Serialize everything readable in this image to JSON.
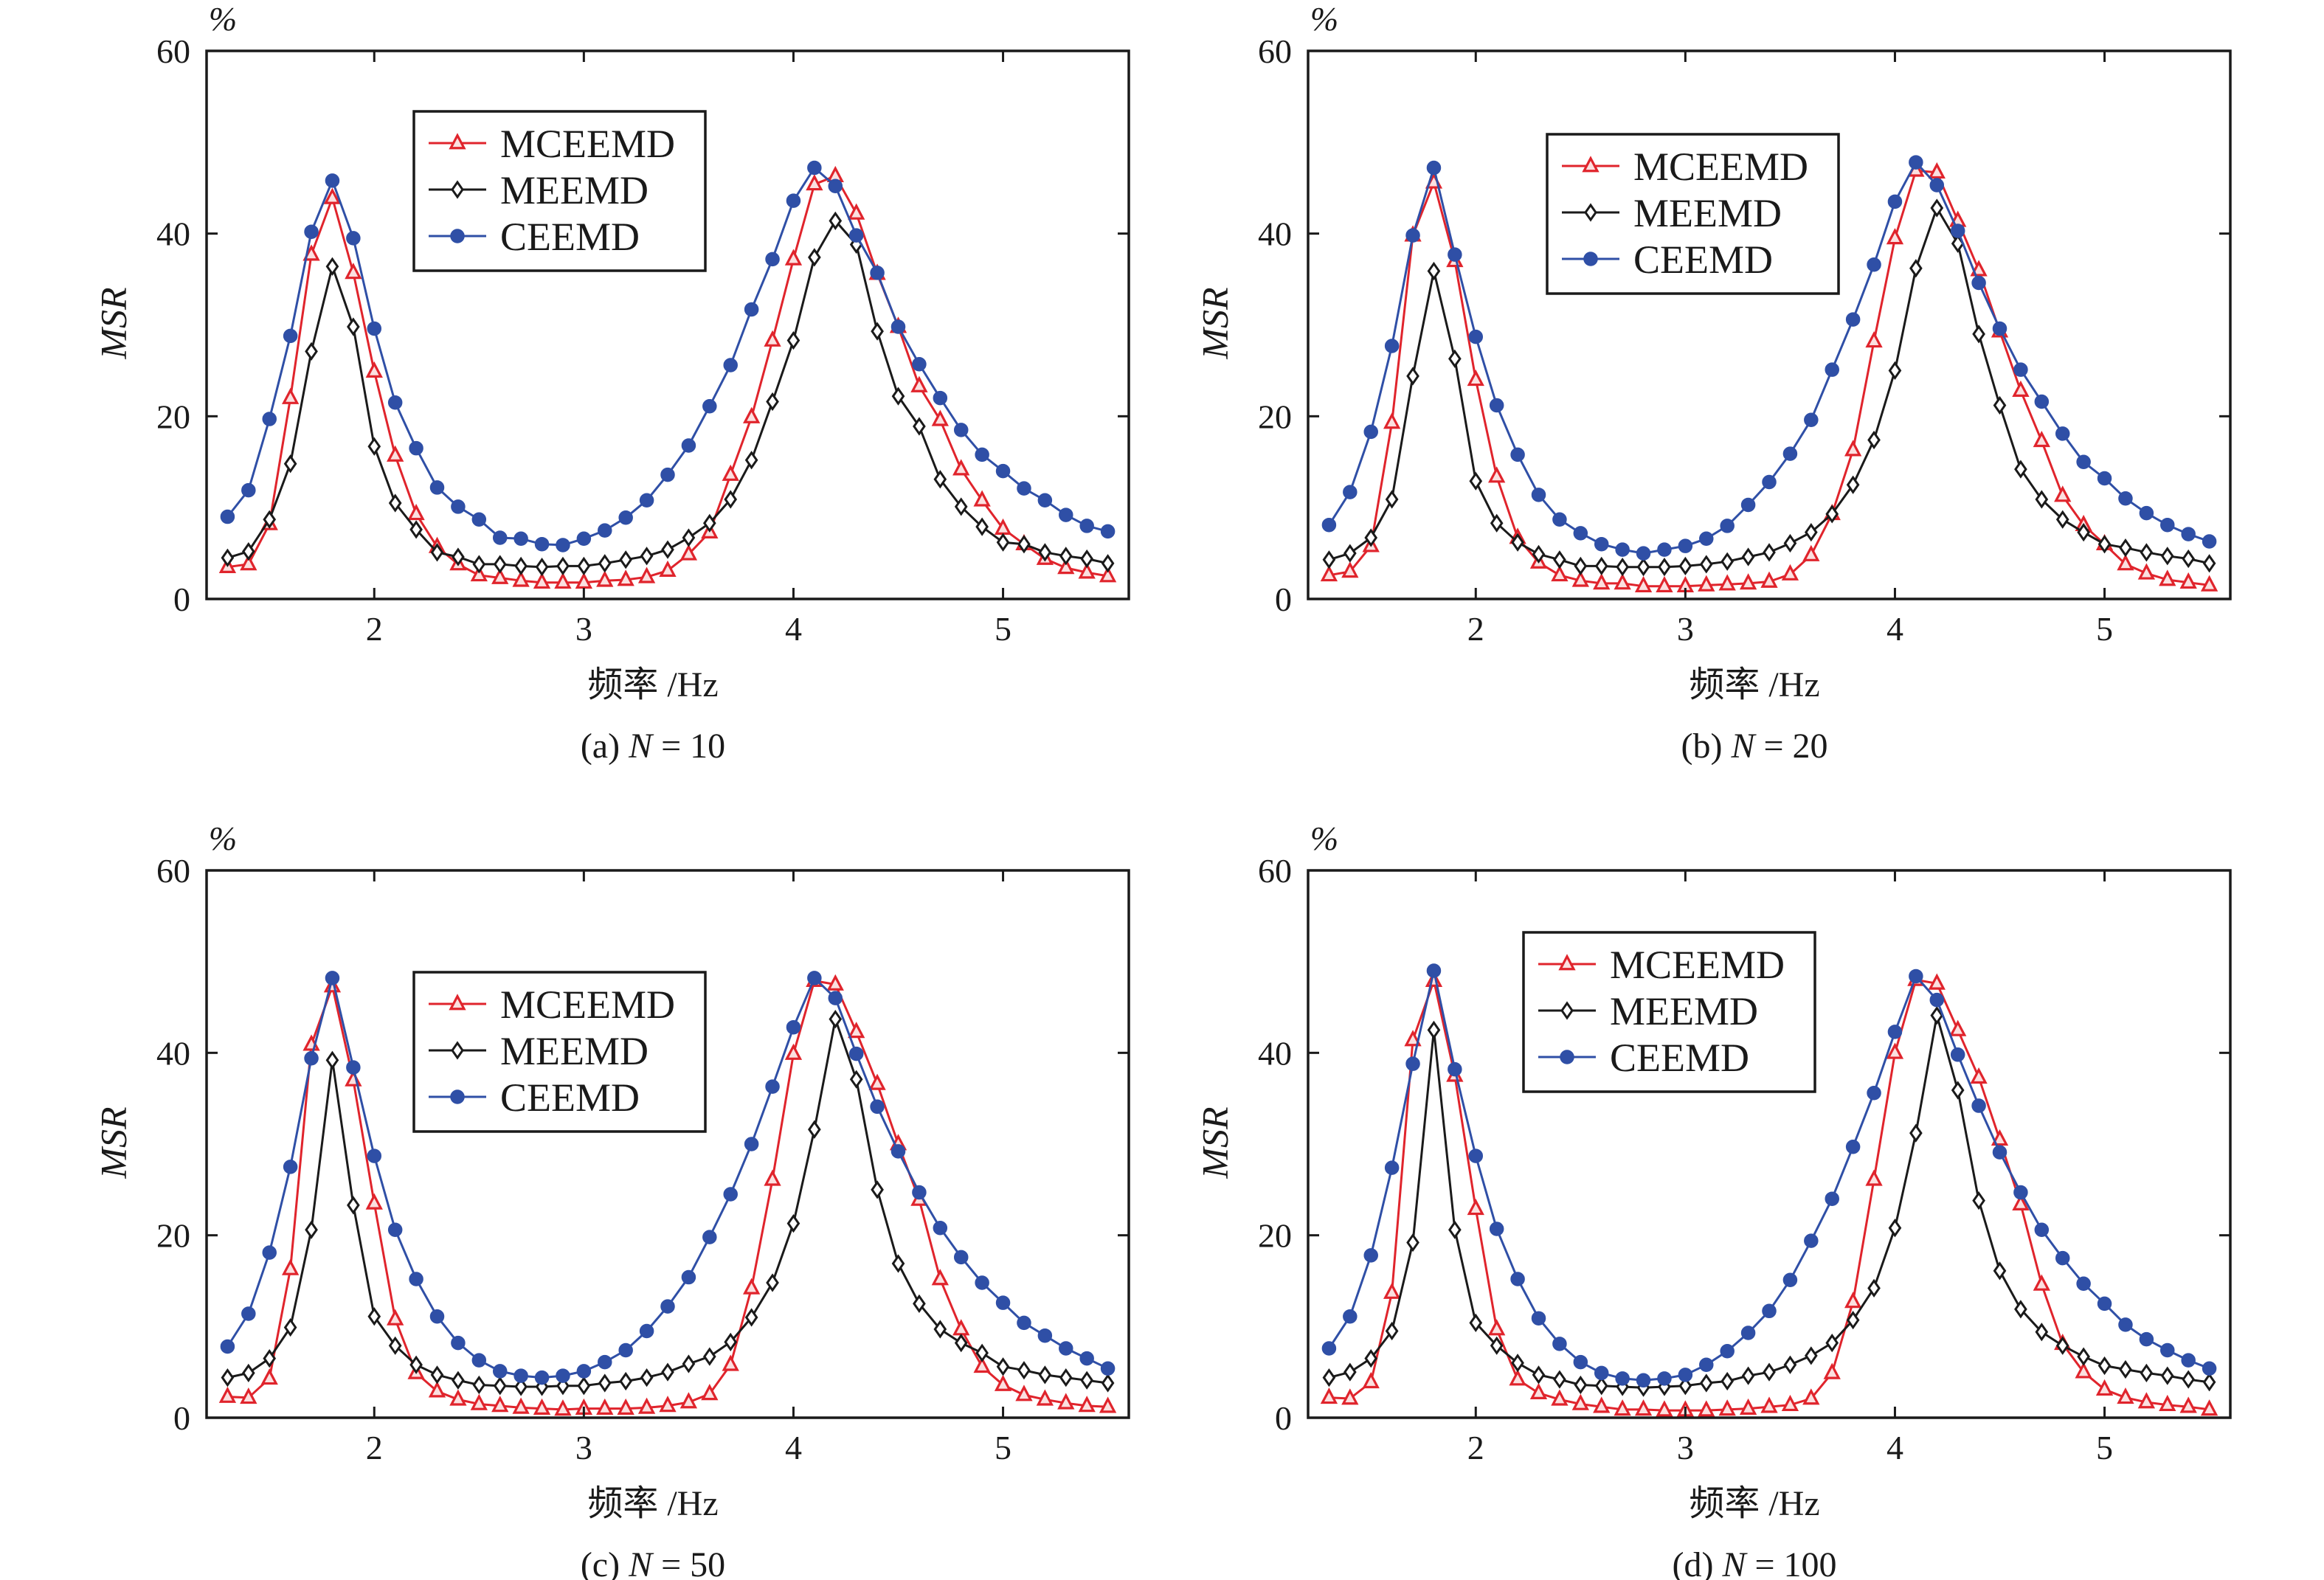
{
  "figure": {
    "colors": {
      "MCEEMD": "#e0242c",
      "MEEMD": "#1a1a1a",
      "CEEMD": "#2f4fa6",
      "axis": "#1a1a1a"
    }
  },
  "chart_data": [
    {
      "type": "line",
      "panel": "a",
      "title": "",
      "caption": "(a) N = 10",
      "caption_prefix": "(a) ",
      "caption_var": "N",
      "caption_rest": " = 10",
      "xlabel": "频率 /Hz",
      "ylabel": "MSR",
      "yunit": "%",
      "xlim": [
        1.2,
        5.6
      ],
      "ylim": [
        0,
        60
      ],
      "xticks": [
        2,
        3,
        4,
        5
      ],
      "yticks": [
        0,
        20,
        40,
        60
      ],
      "grid": false,
      "legend_position": "upper-center-left",
      "x": [
        1.3,
        1.4,
        1.5,
        1.6,
        1.7,
        1.8,
        1.9,
        2.0,
        2.1,
        2.2,
        2.3,
        2.4,
        2.5,
        2.6,
        2.7,
        2.8,
        2.9,
        3.0,
        3.1,
        3.2,
        3.3,
        3.4,
        3.5,
        3.6,
        3.7,
        3.8,
        3.9,
        4.0,
        4.1,
        4.2,
        4.3,
        4.4,
        4.5,
        4.6,
        4.7,
        4.8,
        4.9,
        5.0,
        5.1,
        5.2,
        5.3,
        5.4,
        5.5
      ],
      "series": [
        {
          "name": "MCEEMD",
          "marker": "triangle",
          "values": [
            3.5,
            3.8,
            8.2,
            22.0,
            37.7,
            43.9,
            35.7,
            24.9,
            15.7,
            9.3,
            5.7,
            3.8,
            2.6,
            2.3,
            2.0,
            1.8,
            1.8,
            1.8,
            2.0,
            2.1,
            2.4,
            3.1,
            4.9,
            7.3,
            13.6,
            19.9,
            28.3,
            37.2,
            45.4,
            46.3,
            42.2,
            35.6,
            29.8,
            23.3,
            19.6,
            14.2,
            10.8,
            7.7,
            6.0,
            4.4,
            3.4,
            2.9,
            2.5
          ]
        },
        {
          "name": "MEEMD",
          "marker": "diamond",
          "values": [
            4.5,
            5.2,
            8.7,
            14.8,
            27.1,
            36.4,
            29.8,
            16.7,
            10.5,
            7.6,
            5.1,
            4.6,
            3.8,
            3.8,
            3.6,
            3.5,
            3.6,
            3.6,
            3.9,
            4.3,
            4.7,
            5.4,
            6.7,
            8.3,
            10.9,
            15.2,
            21.6,
            28.3,
            37.4,
            41.4,
            38.8,
            29.3,
            22.2,
            18.9,
            13.1,
            10.1,
            7.9,
            6.2,
            6.0,
            5.1,
            4.7,
            4.4,
            3.9
          ]
        },
        {
          "name": "CEEMD",
          "marker": "circle",
          "values": [
            9.0,
            11.9,
            19.7,
            28.8,
            40.2,
            45.8,
            39.5,
            29.6,
            21.5,
            16.5,
            12.2,
            10.1,
            8.7,
            6.7,
            6.6,
            6.0,
            5.9,
            6.6,
            7.5,
            8.9,
            10.8,
            13.6,
            16.8,
            21.1,
            25.6,
            31.7,
            37.2,
            43.6,
            47.2,
            45.2,
            39.8,
            35.7,
            29.8,
            25.7,
            22.0,
            18.5,
            15.8,
            14.0,
            12.1,
            10.8,
            9.2,
            8.0,
            7.4
          ]
        }
      ]
    },
    {
      "type": "line",
      "panel": "b",
      "title": "",
      "caption": "(b) N = 20",
      "caption_prefix": "(b) ",
      "caption_var": "N",
      "caption_rest": " = 20",
      "xlabel": "频率 /Hz",
      "ylabel": "MSR",
      "yunit": "%",
      "xlim": [
        1.2,
        5.6
      ],
      "ylim": [
        0,
        60
      ],
      "xticks": [
        2,
        3,
        4,
        5
      ],
      "yticks": [
        0,
        20,
        40,
        60
      ],
      "grid": false,
      "legend_position": "upper-center",
      "x": [
        1.3,
        1.4,
        1.5,
        1.6,
        1.7,
        1.8,
        1.9,
        2.0,
        2.1,
        2.2,
        2.3,
        2.4,
        2.5,
        2.6,
        2.7,
        2.8,
        2.9,
        3.0,
        3.1,
        3.2,
        3.3,
        3.4,
        3.5,
        3.6,
        3.7,
        3.8,
        3.9,
        4.0,
        4.1,
        4.2,
        4.3,
        4.4,
        4.5,
        4.6,
        4.7,
        4.8,
        4.9,
        5.0,
        5.1,
        5.2,
        5.3,
        5.4,
        5.5
      ],
      "series": [
        {
          "name": "MCEEMD",
          "marker": "triangle",
          "values": [
            2.6,
            3.0,
            5.8,
            19.3,
            39.8,
            45.6,
            37.0,
            24.0,
            13.4,
            6.7,
            4.0,
            2.6,
            2.0,
            1.7,
            1.7,
            1.4,
            1.4,
            1.4,
            1.5,
            1.6,
            1.7,
            1.9,
            2.7,
            4.8,
            9.3,
            16.3,
            28.2,
            39.5,
            46.9,
            46.7,
            41.4,
            36.0,
            29.3,
            22.8,
            17.3,
            11.3,
            8.1,
            6.0,
            3.8,
            2.8,
            2.1,
            1.8,
            1.5
          ]
        },
        {
          "name": "MEEMD",
          "marker": "diamond",
          "values": [
            4.3,
            5.0,
            6.7,
            10.9,
            24.4,
            35.9,
            26.3,
            12.9,
            8.3,
            6.2,
            4.9,
            4.3,
            3.6,
            3.6,
            3.5,
            3.5,
            3.5,
            3.6,
            3.8,
            4.1,
            4.6,
            5.1,
            6.1,
            7.3,
            9.3,
            12.5,
            17.4,
            25.0,
            36.2,
            42.8,
            38.9,
            29.0,
            21.2,
            14.2,
            10.9,
            8.7,
            7.3,
            6.0,
            5.6,
            5.1,
            4.7,
            4.4,
            3.9
          ]
        },
        {
          "name": "CEEMD",
          "marker": "circle",
          "values": [
            8.1,
            11.7,
            18.3,
            27.7,
            39.8,
            47.2,
            37.7,
            28.7,
            21.2,
            15.8,
            11.4,
            8.7,
            7.2,
            6.0,
            5.4,
            5.0,
            5.4,
            5.8,
            6.6,
            8.0,
            10.3,
            12.8,
            15.9,
            19.6,
            25.1,
            30.6,
            36.6,
            43.5,
            47.8,
            45.3,
            40.3,
            34.6,
            29.6,
            25.1,
            21.6,
            18.1,
            15.0,
            13.2,
            11.0,
            9.4,
            8.1,
            7.1,
            6.3
          ]
        }
      ]
    },
    {
      "type": "line",
      "panel": "c",
      "title": "",
      "caption": "(c) N = 50",
      "caption_prefix": "(c) ",
      "caption_var": "N",
      "caption_rest": " = 50",
      "xlabel": "频率 /Hz",
      "ylabel": "MSR",
      "yunit": "%",
      "xlim": [
        1.2,
        5.6
      ],
      "ylim": [
        0,
        60
      ],
      "xticks": [
        2,
        3,
        4,
        5
      ],
      "yticks": [
        0,
        20,
        40,
        60
      ],
      "grid": false,
      "legend_position": "upper-center-left",
      "x": [
        1.3,
        1.4,
        1.5,
        1.6,
        1.7,
        1.8,
        1.9,
        2.0,
        2.1,
        2.2,
        2.3,
        2.4,
        2.5,
        2.6,
        2.7,
        2.8,
        2.9,
        3.0,
        3.1,
        3.2,
        3.3,
        3.4,
        3.5,
        3.6,
        3.7,
        3.8,
        3.9,
        4.0,
        4.1,
        4.2,
        4.3,
        4.4,
        4.5,
        4.6,
        4.7,
        4.8,
        4.9,
        5.0,
        5.1,
        5.2,
        5.3,
        5.4,
        5.5
      ],
      "series": [
        {
          "name": "MCEEMD",
          "marker": "triangle",
          "values": [
            2.3,
            2.2,
            4.3,
            16.3,
            40.9,
            47.3,
            37.0,
            23.5,
            10.8,
            4.9,
            2.9,
            2.0,
            1.5,
            1.3,
            1.1,
            1.0,
            0.9,
            1.0,
            1.0,
            1.0,
            1.1,
            1.3,
            1.7,
            2.6,
            5.8,
            14.2,
            26.1,
            39.9,
            47.9,
            47.5,
            42.3,
            36.6,
            30.0,
            23.9,
            15.2,
            9.7,
            5.6,
            3.6,
            2.5,
            2.0,
            1.6,
            1.3,
            1.2
          ]
        },
        {
          "name": "MEEMD",
          "marker": "diamond",
          "values": [
            4.4,
            4.9,
            6.5,
            9.9,
            20.6,
            39.2,
            23.3,
            11.1,
            7.9,
            5.8,
            4.7,
            4.1,
            3.6,
            3.5,
            3.4,
            3.4,
            3.5,
            3.5,
            3.8,
            4.0,
            4.4,
            5.0,
            5.9,
            6.7,
            8.3,
            11.0,
            14.8,
            21.3,
            31.6,
            43.7,
            37.1,
            25.0,
            16.9,
            12.5,
            9.7,
            8.2,
            7.1,
            5.6,
            5.2,
            4.7,
            4.4,
            4.1,
            3.8
          ]
        },
        {
          "name": "CEEMD",
          "marker": "circle",
          "values": [
            7.8,
            11.4,
            18.1,
            27.5,
            39.4,
            48.2,
            38.4,
            28.7,
            20.6,
            15.2,
            11.1,
            8.2,
            6.3,
            5.1,
            4.6,
            4.4,
            4.6,
            5.1,
            6.1,
            7.4,
            9.5,
            12.2,
            15.4,
            19.8,
            24.5,
            30.0,
            36.3,
            42.8,
            48.2,
            46.0,
            39.9,
            34.1,
            29.2,
            24.7,
            20.8,
            17.6,
            14.8,
            12.6,
            10.4,
            9.0,
            7.6,
            6.5,
            5.4
          ]
        }
      ]
    },
    {
      "type": "line",
      "panel": "d",
      "title": "",
      "caption": "(d) N = 100",
      "caption_prefix": "(d) ",
      "caption_var": "N",
      "caption_rest": " = 100",
      "xlabel": "频率 /Hz",
      "ylabel": "MSR",
      "yunit": "%",
      "xlim": [
        1.2,
        5.6
      ],
      "ylim": [
        0,
        60
      ],
      "xticks": [
        2,
        3,
        4,
        5
      ],
      "yticks": [
        0,
        20,
        40,
        60
      ],
      "grid": false,
      "legend_position": "upper-center-left",
      "x": [
        1.3,
        1.4,
        1.5,
        1.6,
        1.7,
        1.8,
        1.9,
        2.0,
        2.1,
        2.2,
        2.3,
        2.4,
        2.5,
        2.6,
        2.7,
        2.8,
        2.9,
        3.0,
        3.1,
        3.2,
        3.3,
        3.4,
        3.5,
        3.6,
        3.7,
        3.8,
        3.9,
        4.0,
        4.1,
        4.2,
        4.3,
        4.4,
        4.5,
        4.6,
        4.7,
        4.8,
        4.9,
        5.0,
        5.1,
        5.2,
        5.3,
        5.4,
        5.5
      ],
      "series": [
        {
          "name": "MCEEMD",
          "marker": "triangle",
          "values": [
            2.2,
            2.1,
            3.9,
            13.7,
            41.4,
            47.9,
            37.5,
            22.9,
            9.7,
            4.2,
            2.7,
            2.0,
            1.5,
            1.2,
            0.9,
            0.9,
            0.8,
            0.8,
            0.8,
            0.9,
            1.0,
            1.2,
            1.4,
            2.1,
            4.9,
            12.7,
            26.1,
            40.0,
            48.0,
            47.6,
            42.5,
            37.3,
            30.5,
            23.4,
            14.6,
            8.1,
            5.0,
            3.1,
            2.2,
            1.7,
            1.4,
            1.2,
            0.9
          ]
        },
        {
          "name": "MEEMD",
          "marker": "diamond",
          "values": [
            4.4,
            5.0,
            6.5,
            9.5,
            19.2,
            42.5,
            20.6,
            10.4,
            7.9,
            6.0,
            4.7,
            4.2,
            3.6,
            3.5,
            3.4,
            3.3,
            3.4,
            3.5,
            3.8,
            4.0,
            4.6,
            5.0,
            5.8,
            6.8,
            8.2,
            10.7,
            14.2,
            20.8,
            31.2,
            44.1,
            35.9,
            23.8,
            16.1,
            11.9,
            9.4,
            7.9,
            6.7,
            5.7,
            5.3,
            4.9,
            4.6,
            4.2,
            3.9
          ]
        },
        {
          "name": "CEEMD",
          "marker": "circle",
          "values": [
            7.6,
            11.1,
            17.8,
            27.4,
            38.8,
            49.0,
            38.2,
            28.7,
            20.7,
            15.2,
            10.9,
            8.1,
            6.1,
            4.9,
            4.3,
            4.1,
            4.3,
            4.7,
            5.8,
            7.3,
            9.3,
            11.7,
            15.1,
            19.4,
            24.0,
            29.7,
            35.6,
            42.3,
            48.4,
            45.8,
            39.8,
            34.2,
            29.1,
            24.7,
            20.6,
            17.5,
            14.7,
            12.5,
            10.2,
            8.6,
            7.4,
            6.3,
            5.4
          ]
        }
      ]
    }
  ]
}
